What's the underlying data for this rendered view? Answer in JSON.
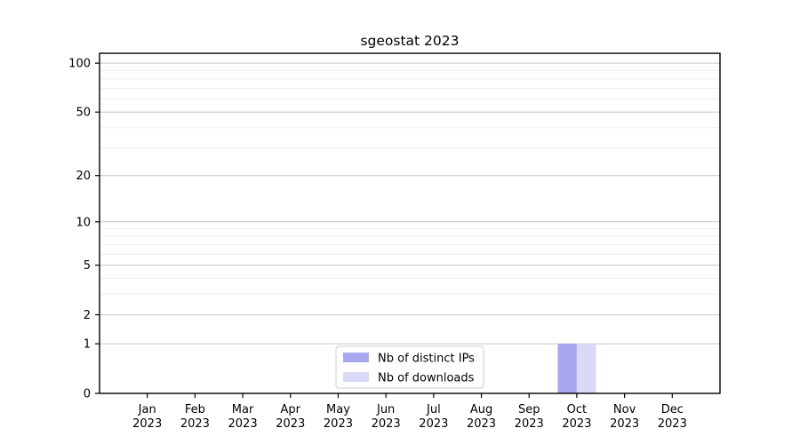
{
  "chart_data": {
    "type": "bar",
    "title": "sgeostat 2023",
    "xlabel": "",
    "ylabel": "",
    "scale": "log1p",
    "grid": true,
    "ylim": [
      0,
      115
    ],
    "yticks": [
      0,
      1,
      2,
      5,
      10,
      20,
      50,
      100
    ],
    "minor_gridlines": [
      3,
      4,
      6,
      7,
      8,
      9,
      30,
      40,
      60,
      70,
      80,
      90
    ],
    "categories": [
      {
        "line1": "Jan",
        "line2": "2023"
      },
      {
        "line1": "Feb",
        "line2": "2023"
      },
      {
        "line1": "Mar",
        "line2": "2023"
      },
      {
        "line1": "Apr",
        "line2": "2023"
      },
      {
        "line1": "May",
        "line2": "2023"
      },
      {
        "line1": "Jun",
        "line2": "2023"
      },
      {
        "line1": "Jul",
        "line2": "2023"
      },
      {
        "line1": "Aug",
        "line2": "2023"
      },
      {
        "line1": "Sep",
        "line2": "2023"
      },
      {
        "line1": "Oct",
        "line2": "2023"
      },
      {
        "line1": "Nov",
        "line2": "2023"
      },
      {
        "line1": "Dec",
        "line2": "2023"
      }
    ],
    "series": [
      {
        "name": "Nb of distinct IPs",
        "color": "#a8a8f0",
        "values": [
          0,
          0,
          0,
          0,
          0,
          0,
          0,
          0,
          0,
          1,
          0,
          0
        ]
      },
      {
        "name": "Nb of downloads",
        "color": "#d9d9f8",
        "values": [
          0,
          0,
          0,
          0,
          0,
          0,
          0,
          0,
          0,
          1,
          0,
          0
        ]
      }
    ],
    "legend_position": "bottom-center-inside",
    "colors": {
      "major_grid": "#c6c6c6",
      "minor_grid": "#eeeeee",
      "spine": "#000000",
      "legend_border": "#cccccc",
      "legend_bg": "#ffffff",
      "text": "#000000"
    }
  }
}
